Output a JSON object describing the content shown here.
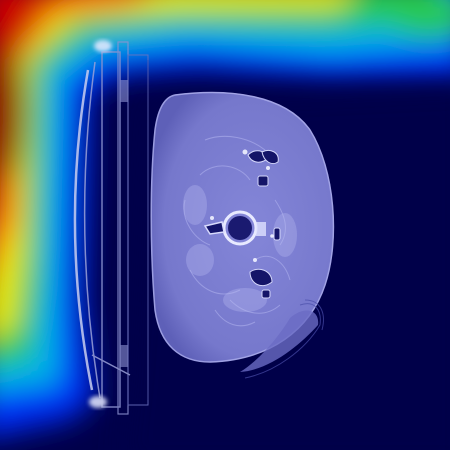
{
  "image": {
    "kind": "ct-axial-slice-with-attention-heatmap-overlay",
    "colormap": "jet",
    "colors": {
      "background_base": "#00004a",
      "heatmap_red": "#9a0000",
      "heatmap_orange": "#ff6a00",
      "heatmap_yellow": "#e8e800",
      "heatmap_green": "#28c850",
      "heatmap_cyan": "#00b4e8",
      "heatmap_blue": "#0030ff",
      "body_tint": "#7a7cd0",
      "table_frame": "#9aa0d8"
    }
  }
}
